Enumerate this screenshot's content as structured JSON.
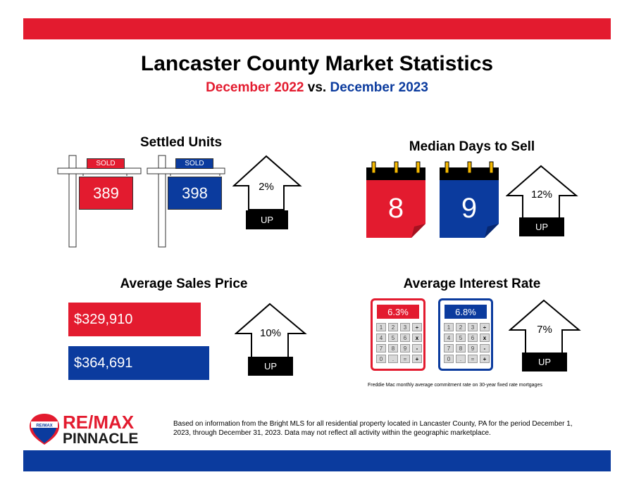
{
  "header": {
    "title": "Lancaster County Market Statistics",
    "subtitle_red": "December 2022",
    "subtitle_vs": "vs.",
    "subtitle_blue": "December 2023"
  },
  "settled_units": {
    "title": "Settled Units",
    "sign_tag": "SOLD",
    "value_2022": "389",
    "value_2023": "398",
    "change": "2%",
    "direction": "UP"
  },
  "median_days": {
    "title": "Median Days to Sell",
    "value_2022": "8",
    "value_2023": "9",
    "change": "12%",
    "direction": "UP"
  },
  "avg_price": {
    "title": "Average Sales Price",
    "value_2022": "$329,910",
    "value_2023": "$364,691",
    "change": "10%",
    "direction": "UP"
  },
  "interest_rate": {
    "title": "Average Interest Rate",
    "value_2022": "6.3%",
    "value_2023": "6.8%",
    "change": "7%",
    "direction": "UP",
    "keys": [
      "1",
      "2",
      "3",
      "÷",
      "4",
      "5",
      "6",
      "x",
      "7",
      "8",
      "9",
      "-",
      "0",
      ".",
      "=",
      "+"
    ],
    "footnote": "Freddie Mac monthly average commitment rate on 30-year fixed rate mortgages"
  },
  "footer": {
    "logo_top": "RE/MAX",
    "logo_bottom": "PINNACLE",
    "balloon_text": "RE/MAX",
    "disclaimer": "Based on information from the Bright MLS for all residential property located in Lancaster County, PA for the period December 1, 2023, through December 31, 2023. Data may not reflect all activity within the geographic marketplace."
  },
  "colors": {
    "red": "#e31b2f",
    "blue": "#0b3b9e",
    "black": "#000000"
  }
}
